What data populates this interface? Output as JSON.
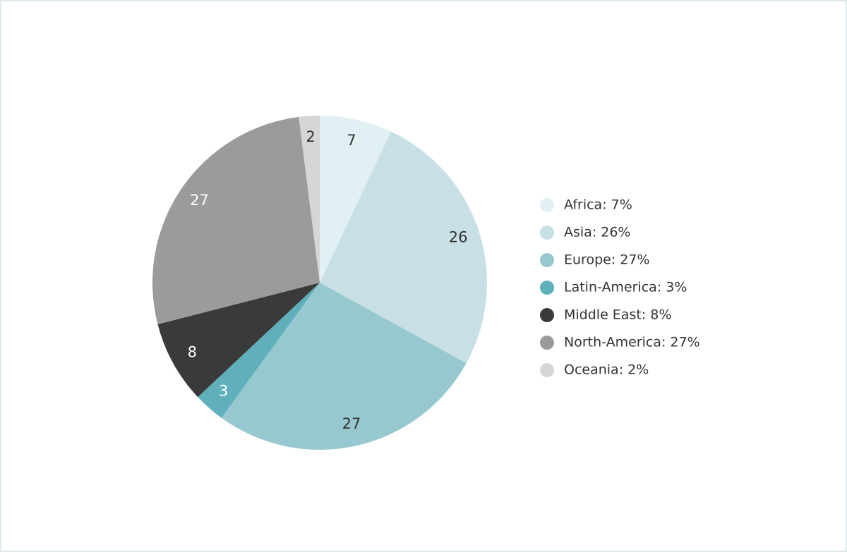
{
  "chart_data": {
    "type": "pie",
    "categories": [
      "Africa: 7%",
      "Asia: 26%",
      "Europe: 27%",
      "Latin-America: 3%",
      "Middle East: 8%",
      "North-America: 27%",
      "Oceania: 2%"
    ],
    "values": [
      7,
      26,
      27,
      3,
      8,
      27,
      2
    ],
    "colors": [
      "#e1f0f2",
      "#c8e0e5",
      "#98c8cf",
      "#5fb0bb",
      "#3a3a3a",
      "#9b9b9b",
      "#d6d6d6"
    ],
    "legend": "right"
  }
}
